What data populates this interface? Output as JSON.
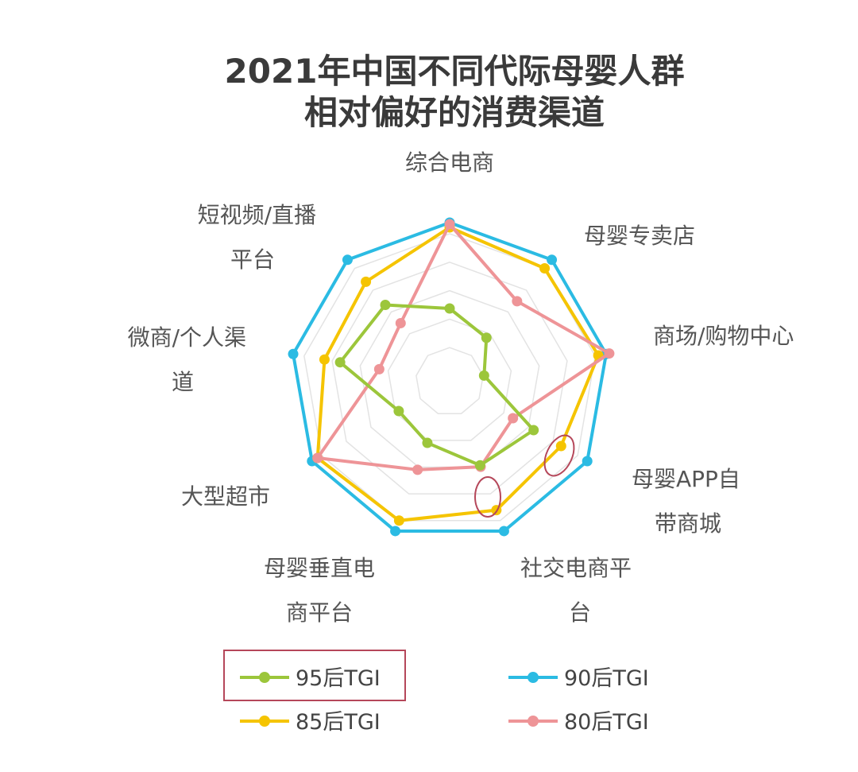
{
  "chart_data": {
    "type": "radar",
    "title_lines": [
      "2021年中国不同代际母婴人群",
      "相对偏好的消费渠道"
    ],
    "axes": [
      {
        "name": "综合电商",
        "label_lines": [
          "综合电商"
        ]
      },
      {
        "name": "母婴专卖店",
        "label_lines": [
          "母婴专卖店"
        ]
      },
      {
        "name": "商场/购物中心",
        "label_lines": [
          "商场/购物中心"
        ]
      },
      {
        "name": "母婴APP自带商城",
        "label_lines": [
          "母婴APP自",
          "带商城"
        ]
      },
      {
        "name": "社交电商平台",
        "label_lines": [
          "社交电商平",
          "台"
        ]
      },
      {
        "name": "母婴垂直电商平台",
        "label_lines": [
          "母婴垂直电",
          "商平台"
        ]
      },
      {
        "name": "大型超市",
        "label_lines": [
          "大型超市"
        ]
      },
      {
        "name": "微商/个人渠道",
        "label_lines": [
          "微商/个人渠",
          "道"
        ]
      },
      {
        "name": "短视频/直播平台",
        "label_lines": [
          "短视频/直播",
          "平台"
        ]
      }
    ],
    "series": [
      {
        "name": "95后TGI",
        "color": "#9cc63b",
        "values": [
          0.46,
          0.36,
          0.22,
          0.61,
          0.56,
          0.41,
          0.37,
          0.7,
          0.63
        ]
      },
      {
        "name": "90后TGI",
        "color": "#2bbbe3",
        "values": [
          1.0,
          1.0,
          1.0,
          1.0,
          1.0,
          1.0,
          1.0,
          1.0,
          1.0
        ]
      },
      {
        "name": "85后TGI",
        "color": "#f5c400",
        "values": [
          0.97,
          0.93,
          0.95,
          0.81,
          0.86,
          0.93,
          0.96,
          0.8,
          0.82
        ]
      },
      {
        "name": "80后TGI",
        "color": "#ee9497",
        "values": [
          0.99,
          0.66,
          1.02,
          0.46,
          0.57,
          0.59,
          0.96,
          0.45,
          0.48
        ]
      }
    ],
    "grid_rings": 5,
    "grid_shape": "polygon",
    "legend": {
      "placement": "bottom",
      "columns": 2
    },
    "highlight": {
      "box_series": "95后TGI",
      "box_color": "#b5475a"
    }
  }
}
